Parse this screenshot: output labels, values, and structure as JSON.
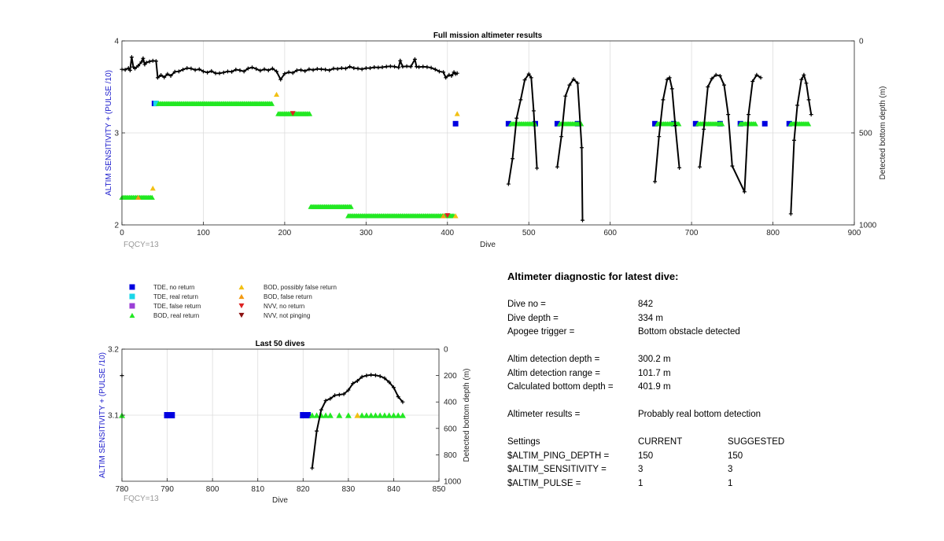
{
  "colors": {
    "tde_no_return": "#0000e0",
    "tde_real_return": "#19d6e8",
    "tde_false_return": "#9b3fd6",
    "bod_real_return": "#22e822",
    "bod_possibly_false": "#f2c014",
    "bod_false": "#f29a14",
    "nvv_no_return": "#dd2222",
    "nvv_not_pinging": "#8b1010",
    "depth_line": "#000000",
    "left_axis_label": "#1a1acc"
  },
  "legend": {
    "items": [
      {
        "label": "TDE, no return",
        "icon": "square-icon",
        "color": "#0000e0"
      },
      {
        "label": "TDE, real return",
        "icon": "square-icon",
        "color": "#19d6e8"
      },
      {
        "label": "TDE, false return",
        "icon": "square-icon",
        "color": "#9b3fd6"
      },
      {
        "label": "BOD, real return",
        "icon": "triangle-up-icon",
        "color": "#22e822"
      },
      {
        "label": "BOD, possibly false return",
        "icon": "triangle-up-icon",
        "color": "#f2c014"
      },
      {
        "label": "BOD, false return",
        "icon": "triangle-up-icon",
        "color": "#f29a14"
      },
      {
        "label": "NVV, no return",
        "icon": "triangle-down-icon",
        "color": "#dd2222"
      },
      {
        "label": "NVV, not pinging",
        "icon": "triangle-down-icon",
        "color": "#8b1010"
      }
    ]
  },
  "chart_data": [
    {
      "type": "scatter",
      "title": "Full mission altimeter results",
      "xlabel": "Dive",
      "ylabel": "ALTIM SENSITIVITY + (PULSE /10)",
      "ylabel_right": "Detected bottom depth (m)",
      "xlim": [
        0,
        900
      ],
      "ylim": [
        2,
        4
      ],
      "ylim_right": [
        1000,
        0
      ],
      "x_ticks": [
        0,
        100,
        200,
        300,
        400,
        500,
        600,
        700,
        800,
        900
      ],
      "y_ticks": [
        2,
        3,
        4
      ],
      "y_ticks_right": [
        0,
        500,
        1000
      ],
      "grid": true,
      "footnote": "FQCY=13",
      "series": [
        {
          "name": "TDE, no return",
          "marker": "square",
          "points": [
            [
              40,
              3.32
            ],
            [
              410,
              3.1
            ],
            [
              475,
              3.1
            ],
            [
              508,
              3.1
            ],
            [
              535,
              3.1
            ],
            [
              560,
              3.1
            ],
            [
              655,
              3.1
            ],
            [
              678,
              3.1
            ],
            [
              705,
              3.1
            ],
            [
              735,
              3.1
            ],
            [
              760,
              3.1
            ],
            [
              790,
              3.1
            ],
            [
              820,
              3.1
            ]
          ]
        },
        {
          "name": "TDE, real return",
          "marker": "square",
          "points": [
            [
              42,
              3.32
            ]
          ]
        },
        {
          "name": "BOD, real return",
          "marker": "triangle-up",
          "segments": [
            [
              0,
              38,
              2.3
            ],
            [
              45,
              185,
              3.32
            ],
            [
              192,
              232,
              3.21
            ],
            [
              232,
              282,
              2.2
            ],
            [
              278,
              408,
              2.1
            ],
            [
              478,
              508,
              3.1
            ],
            [
              538,
              565,
              3.1
            ],
            [
              658,
              685,
              3.1
            ],
            [
              708,
              738,
              3.1
            ],
            [
              760,
              780,
              3.1
            ],
            [
              822,
              845,
              3.1
            ]
          ]
        },
        {
          "name": "BOD, possibly false return",
          "marker": "triangle-up",
          "points": [
            [
              38,
              2.4
            ],
            [
              190,
              3.42
            ],
            [
              410,
              2.1
            ],
            [
              412,
              3.21
            ]
          ]
        },
        {
          "name": "BOD, false return",
          "marker": "triangle-up",
          "points": [
            [
              20,
              2.3
            ],
            [
              395,
              2.1
            ]
          ]
        },
        {
          "name": "NVV, no return",
          "marker": "triangle-down",
          "points": [
            [
              210,
              3.21
            ],
            [
              400,
              2.1
            ]
          ]
        }
      ],
      "depth_series": {
        "name": "Detected bottom depth",
        "axis": "right",
        "points": [
          [
            0,
            155
          ],
          [
            4,
            157
          ],
          [
            8,
            148
          ],
          [
            10,
            160
          ],
          [
            12,
            88
          ],
          [
            14,
            142
          ],
          [
            16,
            150
          ],
          [
            20,
            135
          ],
          [
            24,
            115
          ],
          [
            26,
            95
          ],
          [
            28,
            128
          ],
          [
            30,
            118
          ],
          [
            34,
            112
          ],
          [
            38,
            108
          ],
          [
            42,
            110
          ],
          [
            44,
            200
          ],
          [
            48,
            186
          ],
          [
            52,
            198
          ],
          [
            56,
            180
          ],
          [
            60,
            190
          ],
          [
            65,
            168
          ],
          [
            70,
            166
          ],
          [
            75,
            156
          ],
          [
            80,
            148
          ],
          [
            85,
            150
          ],
          [
            90,
            158
          ],
          [
            95,
            154
          ],
          [
            100,
            166
          ],
          [
            105,
            172
          ],
          [
            110,
            164
          ],
          [
            115,
            176
          ],
          [
            120,
            176
          ],
          [
            125,
            172
          ],
          [
            130,
            166
          ],
          [
            135,
            168
          ],
          [
            140,
            156
          ],
          [
            145,
            160
          ],
          [
            150,
            166
          ],
          [
            155,
            150
          ],
          [
            160,
            144
          ],
          [
            165,
            152
          ],
          [
            170,
            162
          ],
          [
            175,
            154
          ],
          [
            180,
            160
          ],
          [
            185,
            150
          ],
          [
            190,
            166
          ],
          [
            195,
            210
          ],
          [
            200,
            178
          ],
          [
            205,
            170
          ],
          [
            210,
            174
          ],
          [
            215,
            160
          ],
          [
            220,
            158
          ],
          [
            225,
            164
          ],
          [
            230,
            154
          ],
          [
            235,
            158
          ],
          [
            240,
            152
          ],
          [
            245,
            154
          ],
          [
            250,
            156
          ],
          [
            255,
            160
          ],
          [
            260,
            150
          ],
          [
            265,
            152
          ],
          [
            270,
            148
          ],
          [
            275,
            150
          ],
          [
            280,
            140
          ],
          [
            285,
            148
          ],
          [
            290,
            150
          ],
          [
            295,
            154
          ],
          [
            300,
            148
          ],
          [
            305,
            148
          ],
          [
            310,
            143
          ],
          [
            315,
            145
          ],
          [
            320,
            143
          ],
          [
            325,
            140
          ],
          [
            330,
            138
          ],
          [
            335,
            140
          ],
          [
            340,
            145
          ],
          [
            342,
            108
          ],
          [
            345,
            140
          ],
          [
            350,
            138
          ],
          [
            355,
            140
          ],
          [
            360,
            100
          ],
          [
            362,
            140
          ],
          [
            365,
            142
          ],
          [
            370,
            140
          ],
          [
            375,
            142
          ],
          [
            380,
            146
          ],
          [
            385,
            155
          ],
          [
            390,
            166
          ],
          [
            395,
            170
          ],
          [
            398,
            200
          ],
          [
            402,
            185
          ],
          [
            405,
            190
          ],
          [
            408,
            170
          ],
          [
            410,
            180
          ],
          [
            412,
            176
          ],
          [
            475,
            778
          ],
          [
            480,
            640
          ],
          [
            485,
            420
          ],
          [
            490,
            320
          ],
          [
            495,
            212
          ],
          [
            500,
            180
          ],
          [
            503,
            200
          ],
          [
            506,
            380
          ],
          [
            510,
            692
          ],
          [
            535,
            685
          ],
          [
            540,
            520
          ],
          [
            545,
            300
          ],
          [
            550,
            240
          ],
          [
            555,
            208
          ],
          [
            560,
            230
          ],
          [
            565,
            580
          ],
          [
            566,
            975
          ],
          [
            655,
            765
          ],
          [
            660,
            520
          ],
          [
            665,
            320
          ],
          [
            670,
            210
          ],
          [
            673,
            200
          ],
          [
            676,
            260
          ],
          [
            680,
            460
          ],
          [
            685,
            690
          ],
          [
            710,
            685
          ],
          [
            715,
            480
          ],
          [
            720,
            250
          ],
          [
            725,
            205
          ],
          [
            730,
            185
          ],
          [
            735,
            190
          ],
          [
            740,
            240
          ],
          [
            745,
            400
          ],
          [
            750,
            680
          ],
          [
            765,
            820
          ],
          [
            770,
            400
          ],
          [
            775,
            220
          ],
          [
            780,
            185
          ],
          [
            785,
            200
          ],
          [
            822,
            940
          ],
          [
            826,
            540
          ],
          [
            830,
            350
          ],
          [
            835,
            210
          ],
          [
            838,
            185
          ],
          [
            841,
            230
          ],
          [
            844,
            320
          ],
          [
            847,
            400
          ]
        ]
      }
    },
    {
      "type": "scatter",
      "title": "Last 50 dives",
      "xlabel": "Dive",
      "ylabel": "ALTIM SENSITIVITY + (PULSE /10)",
      "ylabel_right": "Detected bottom depth (m)",
      "xlim": [
        780,
        850
      ],
      "ylim": [
        3.0,
        3.2
      ],
      "ylim_right": [
        1000,
        0
      ],
      "x_ticks": [
        780,
        790,
        800,
        810,
        820,
        830,
        840,
        850
      ],
      "y_ticks": [
        3.1,
        3.2
      ],
      "y_ticks_right": [
        0,
        200,
        400,
        600,
        800,
        1000
      ],
      "grid": true,
      "footnote": "FQCY=13",
      "series": [
        {
          "name": "TDE, no return",
          "marker": "square",
          "points": [
            [
              790,
              3.1
            ],
            [
              791,
              3.1
            ],
            [
              820,
              3.1
            ],
            [
              821,
              3.1
            ]
          ]
        },
        {
          "name": "BOD, real return",
          "marker": "triangle-up",
          "points": [
            [
              780,
              3.1
            ],
            [
              822,
              3.1
            ],
            [
              823,
              3.1
            ],
            [
              824,
              3.1
            ],
            [
              825,
              3.1
            ],
            [
              826,
              3.1
            ],
            [
              828,
              3.1
            ],
            [
              830,
              3.1
            ],
            [
              833,
              3.1
            ],
            [
              834,
              3.1
            ],
            [
              835,
              3.1
            ],
            [
              836,
              3.1
            ],
            [
              837,
              3.1
            ],
            [
              838,
              3.1
            ],
            [
              839,
              3.1
            ],
            [
              840,
              3.1
            ],
            [
              841,
              3.1
            ],
            [
              842,
              3.1
            ]
          ]
        },
        {
          "name": "BOD, possibly false return",
          "marker": "triangle-up",
          "points": [
            [
              832,
              3.1
            ]
          ]
        }
      ],
      "depth_series": {
        "name": "Detected bottom depth",
        "axis": "right",
        "points": [
          [
            780,
            200
          ],
          [
            822,
            900
          ],
          [
            823,
            620
          ],
          [
            824,
            460
          ],
          [
            825,
            390
          ],
          [
            826,
            375
          ],
          [
            827,
            350
          ],
          [
            828,
            345
          ],
          [
            829,
            340
          ],
          [
            830,
            310
          ],
          [
            831,
            260
          ],
          [
            832,
            240
          ],
          [
            833,
            210
          ],
          [
            834,
            200
          ],
          [
            835,
            195
          ],
          [
            836,
            198
          ],
          [
            837,
            205
          ],
          [
            838,
            220
          ],
          [
            839,
            250
          ],
          [
            840,
            290
          ],
          [
            841,
            360
          ],
          [
            842,
            400
          ]
        ]
      }
    }
  ],
  "diagnostic": {
    "title": "Altimeter diagnostic for latest dive:",
    "dive_no_label": "Dive no =",
    "dive_no_value": "842",
    "dive_depth_label": "Dive depth =",
    "dive_depth_value": "334 m",
    "apogee_label": "Apogee trigger =",
    "apogee_value": "Bottom obstacle detected",
    "altim_det_depth_label": "Altim detection depth =",
    "altim_det_depth_value": "300.2 m",
    "altim_det_range_label": "Altim detection range =",
    "altim_det_range_value": "101.7 m",
    "calc_bottom_label": "Calculated bottom depth =",
    "calc_bottom_value": "401.9 m",
    "results_label": "Altimeter results =",
    "results_value": "Probably real bottom detection",
    "settings_label": "Settings",
    "current_label": "CURRENT",
    "suggested_label": "SUGGESTED",
    "ping_depth_label": "$ALTIM_PING_DEPTH =",
    "ping_depth_current": "150",
    "ping_depth_suggested": "150",
    "sensitivity_label": "$ALTIM_SENSITIVITY =",
    "sensitivity_current": "3",
    "sensitivity_suggested": "3",
    "pulse_label": "$ALTIM_PULSE =",
    "pulse_current": "1",
    "pulse_suggested": "1"
  }
}
